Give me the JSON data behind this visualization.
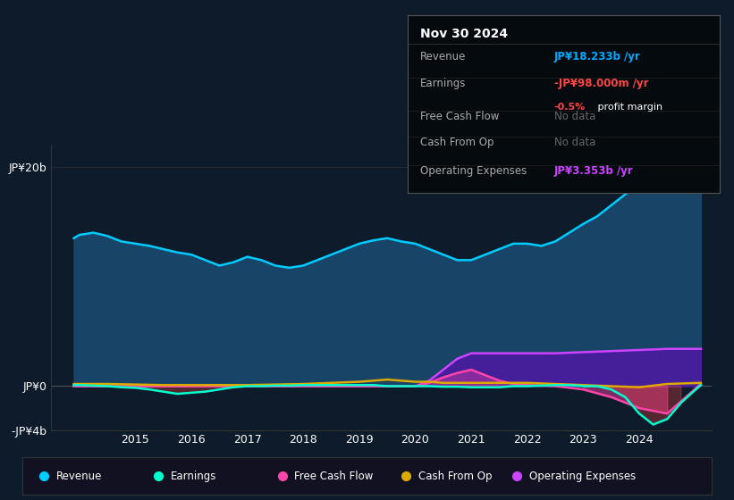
{
  "bg_color": "#0d1b2a",
  "plot_bg_color": "#0d1b2a",
  "title": "Nov 30 2024",
  "info_box_rows": [
    {
      "label": "Revenue",
      "value": "JP¥18.233b /yr",
      "value_color": "#00aaff",
      "extra": null
    },
    {
      "label": "Earnings",
      "value": "-JP¥98.000m /yr",
      "value_color": "#ff4444",
      "extra": "-0.5% profit margin"
    },
    {
      "label": "Free Cash Flow",
      "value": "No data",
      "value_color": "#666666",
      "extra": null
    },
    {
      "label": "Cash From Op",
      "value": "No data",
      "value_color": "#666666",
      "extra": null
    },
    {
      "label": "Operating Expenses",
      "value": "JP¥3.353b /yr",
      "value_color": "#cc44ff",
      "extra": null
    }
  ],
  "ylim": [
    -4,
    22
  ],
  "yticks": [
    -4,
    0,
    20
  ],
  "ytick_labels": [
    "-JP¥4b",
    "JP¥0",
    "JP¥20b"
  ],
  "xlim_start": 2013.5,
  "xlim_end": 2025.3,
  "xticks": [
    2015,
    2016,
    2017,
    2018,
    2019,
    2020,
    2021,
    2022,
    2023,
    2024
  ],
  "revenue_color": "#00ccff",
  "revenue_fill": "#1a4a6e",
  "earnings_color": "#00ffcc",
  "fcf_color": "#ff44aa",
  "cfo_color": "#ddaa00",
  "opex_color": "#cc44ff",
  "legend_items": [
    {
      "label": "Revenue",
      "color": "#00ccff"
    },
    {
      "label": "Earnings",
      "color": "#00ffcc"
    },
    {
      "label": "Free Cash Flow",
      "color": "#ff44aa"
    },
    {
      "label": "Cash From Op",
      "color": "#ddaa00"
    },
    {
      "label": "Operating Expenses",
      "color": "#cc44ff"
    }
  ],
  "revenue": {
    "x": [
      2013.9,
      2014.0,
      2014.25,
      2014.5,
      2014.75,
      2015.0,
      2015.25,
      2015.5,
      2015.75,
      2016.0,
      2016.25,
      2016.5,
      2016.75,
      2017.0,
      2017.25,
      2017.5,
      2017.75,
      2018.0,
      2018.25,
      2018.5,
      2018.75,
      2019.0,
      2019.25,
      2019.5,
      2019.75,
      2020.0,
      2020.25,
      2020.5,
      2020.75,
      2021.0,
      2021.25,
      2021.5,
      2021.75,
      2022.0,
      2022.25,
      2022.5,
      2022.75,
      2023.0,
      2023.25,
      2023.5,
      2023.75,
      2024.0,
      2024.25,
      2024.5,
      2024.75,
      2025.1
    ],
    "y": [
      13.5,
      13.8,
      14.0,
      13.7,
      13.2,
      13.0,
      12.8,
      12.5,
      12.2,
      12.0,
      11.5,
      11.0,
      11.3,
      11.8,
      11.5,
      11.0,
      10.8,
      11.0,
      11.5,
      12.0,
      12.5,
      13.0,
      13.3,
      13.5,
      13.2,
      13.0,
      12.5,
      12.0,
      11.5,
      11.5,
      12.0,
      12.5,
      13.0,
      13.0,
      12.8,
      13.2,
      14.0,
      14.8,
      15.5,
      16.5,
      17.5,
      18.5,
      19.5,
      20.5,
      20.2,
      18.2
    ]
  },
  "earnings": {
    "x": [
      2013.9,
      2014.0,
      2014.25,
      2014.5,
      2014.75,
      2015.0,
      2015.25,
      2015.5,
      2015.75,
      2016.0,
      2016.25,
      2016.5,
      2016.75,
      2017.0,
      2017.25,
      2017.5,
      2017.75,
      2018.0,
      2018.25,
      2018.5,
      2018.75,
      2019.0,
      2019.25,
      2019.5,
      2019.75,
      2020.0,
      2020.25,
      2020.5,
      2020.75,
      2021.0,
      2021.25,
      2021.5,
      2021.75,
      2022.0,
      2022.25,
      2022.5,
      2022.75,
      2023.0,
      2023.25,
      2023.5,
      2023.75,
      2024.0,
      2024.25,
      2024.5,
      2024.75,
      2025.1
    ],
    "y": [
      0.1,
      0.1,
      0.05,
      0.0,
      -0.1,
      -0.15,
      -0.3,
      -0.5,
      -0.7,
      -0.6,
      -0.5,
      -0.3,
      -0.1,
      0.0,
      0.0,
      0.05,
      0.05,
      0.1,
      0.1,
      0.1,
      0.1,
      0.1,
      0.1,
      0.0,
      0.0,
      0.0,
      0.0,
      -0.05,
      -0.05,
      -0.1,
      -0.1,
      -0.1,
      0.0,
      0.0,
      0.05,
      0.1,
      0.1,
      0.0,
      0.0,
      -0.3,
      -1.0,
      -2.5,
      -3.5,
      -3.0,
      -1.5,
      0.1
    ]
  },
  "fcf": {
    "x": [
      2013.9,
      2014.0,
      2014.5,
      2015.0,
      2015.5,
      2016.0,
      2016.5,
      2017.0,
      2017.5,
      2018.0,
      2018.5,
      2019.0,
      2019.5,
      2020.0,
      2020.25,
      2020.5,
      2020.75,
      2021.0,
      2021.25,
      2021.5,
      2021.75,
      2022.0,
      2022.5,
      2023.0,
      2023.5,
      2024.0,
      2024.5,
      2025.1
    ],
    "y": [
      0.0,
      0.0,
      0.0,
      0.0,
      0.0,
      0.0,
      0.0,
      0.0,
      0.0,
      0.0,
      0.0,
      0.0,
      0.0,
      0.0,
      0.3,
      0.8,
      1.2,
      1.5,
      1.0,
      0.5,
      0.2,
      0.1,
      0.0,
      -0.3,
      -1.0,
      -2.0,
      -2.5,
      0.2
    ]
  },
  "cfo": {
    "x": [
      2013.9,
      2014.0,
      2014.5,
      2015.0,
      2015.5,
      2016.0,
      2016.5,
      2017.0,
      2017.5,
      2018.0,
      2018.5,
      2019.0,
      2019.25,
      2019.5,
      2019.75,
      2020.0,
      2020.25,
      2020.5,
      2020.75,
      2021.0,
      2021.5,
      2022.0,
      2022.5,
      2023.0,
      2023.5,
      2024.0,
      2024.5,
      2025.1
    ],
    "y": [
      0.2,
      0.2,
      0.2,
      0.15,
      0.1,
      0.1,
      0.1,
      0.1,
      0.15,
      0.2,
      0.3,
      0.4,
      0.5,
      0.6,
      0.5,
      0.4,
      0.4,
      0.3,
      0.3,
      0.3,
      0.3,
      0.3,
      0.2,
      0.1,
      0.0,
      -0.1,
      0.2,
      0.3
    ]
  },
  "opex": {
    "x": [
      2013.9,
      2014.0,
      2014.5,
      2015.0,
      2015.5,
      2016.0,
      2016.5,
      2017.0,
      2017.5,
      2018.0,
      2018.5,
      2019.0,
      2019.5,
      2020.0,
      2020.25,
      2020.5,
      2020.75,
      2021.0,
      2021.5,
      2022.0,
      2022.5,
      2023.0,
      2023.5,
      2024.0,
      2024.5,
      2025.1
    ],
    "y": [
      0.0,
      0.0,
      0.0,
      0.0,
      0.0,
      0.0,
      0.0,
      0.0,
      0.0,
      0.0,
      0.0,
      0.0,
      0.0,
      0.0,
      0.5,
      1.5,
      2.5,
      3.0,
      3.0,
      3.0,
      3.0,
      3.1,
      3.2,
      3.3,
      3.4,
      3.4
    ]
  }
}
